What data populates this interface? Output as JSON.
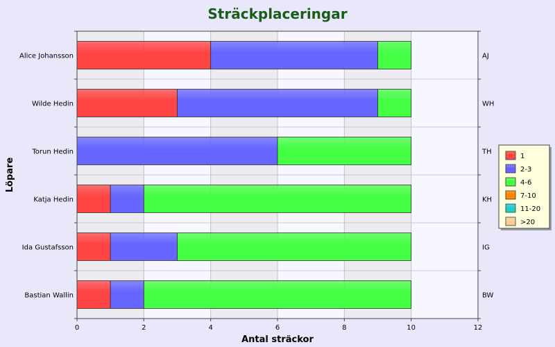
{
  "chart_data": {
    "type": "bar",
    "orientation": "horizontal",
    "stacked": true,
    "title": "Sträckplaceringar",
    "xlabel": "Antal sträckor",
    "ylabel": "Löpare",
    "xlim": [
      0,
      12
    ],
    "xticks": [
      "0",
      "2",
      "4",
      "6",
      "8",
      "10",
      "12"
    ],
    "categories": [
      "Alice Johansson",
      "Wilde Hedin",
      "Torun Hedin",
      "Katja Hedin",
      "Ida Gustafsson",
      "Bastian Wallin"
    ],
    "right_labels": [
      "AJ",
      "WH",
      "TH",
      "KH",
      "IG",
      "BW"
    ],
    "series": [
      {
        "name": "1",
        "color": "#ff4444",
        "values": [
          4,
          3,
          0,
          1,
          1,
          1
        ]
      },
      {
        "name": "2-3",
        "color": "#6666ff",
        "values": [
          5,
          6,
          6,
          1,
          2,
          1
        ]
      },
      {
        "name": "4-6",
        "color": "#44ff44",
        "values": [
          1,
          1,
          4,
          8,
          7,
          8
        ]
      },
      {
        "name": "7-10",
        "color": "#ff8800",
        "values": [
          0,
          0,
          0,
          0,
          0,
          0
        ]
      },
      {
        "name": "11-20",
        "color": "#22cccc",
        "values": [
          0,
          0,
          0,
          0,
          0,
          0
        ]
      },
      {
        "name": ">20",
        "color": "#ffcc99",
        "values": [
          0,
          0,
          0,
          0,
          0,
          0
        ]
      }
    ],
    "grid": true,
    "legend_position": "right"
  }
}
